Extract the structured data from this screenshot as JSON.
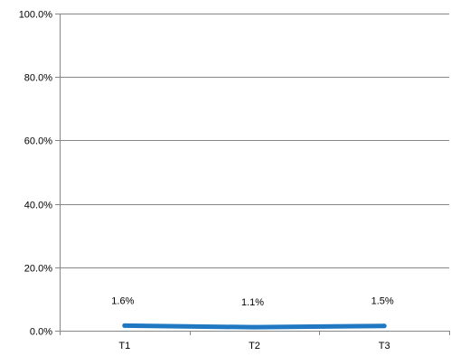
{
  "chart_data": {
    "type": "line",
    "categories": [
      "T1",
      "T2",
      "T3"
    ],
    "series": [
      {
        "values": [
          1.6,
          1.1,
          1.5
        ],
        "data_labels": [
          "1.6%",
          "1.1%",
          "1.5%"
        ],
        "color": "#1f78c1"
      }
    ],
    "ylim": [
      0,
      100
    ],
    "y_ticks": [
      0,
      20,
      40,
      60,
      80,
      100
    ],
    "y_tick_labels": [
      "0.0%",
      "20.0%",
      "40.0%",
      "60.0%",
      "80.0%",
      "100.0%"
    ],
    "title": "",
    "xlabel": "",
    "ylabel": "",
    "grid": "horizontal",
    "legend": "none",
    "colors": {
      "gridline": "#868686",
      "axis": "#868686",
      "text": "#000000"
    }
  }
}
